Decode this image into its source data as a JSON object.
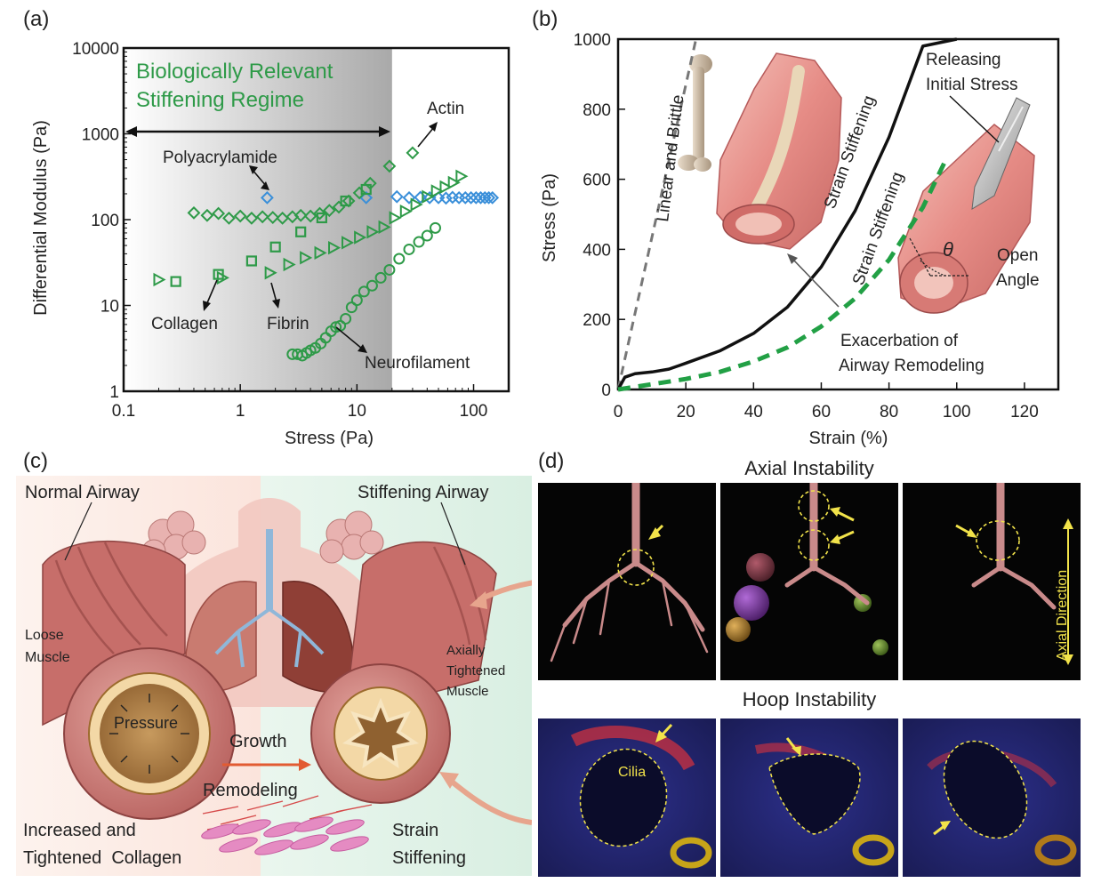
{
  "panels": {
    "a": "(a)",
    "b": "(b)",
    "c": "(c)",
    "d": "(d)"
  },
  "chart_data": [
    {
      "type": "scatter",
      "panel": "a",
      "xscale": "log",
      "yscale": "log",
      "xlim": [
        0.1,
        200
      ],
      "ylim": [
        1,
        10000
      ],
      "xlabel": "Stress (Pa)",
      "ylabel": "Differential Modulus (Pa)",
      "xticks": [
        "0.1",
        "1",
        "10",
        "100"
      ],
      "yticks": [
        "1",
        "10",
        "100",
        "1000",
        "10000"
      ],
      "shaded_region": {
        "x": [
          0.1,
          20
        ],
        "label_line1": "Biologically Relevant",
        "label_line2": "Stiffening Regime"
      },
      "series": [
        {
          "name": "Polyacrylamide",
          "marker": "diamond",
          "color": "#3a8fd9",
          "x": [
            1.7,
            12,
            22,
            28,
            35,
            42,
            50,
            58,
            66,
            75,
            85,
            95,
            105,
            115,
            125,
            135,
            145
          ],
          "y": [
            180,
            180,
            185,
            180,
            182,
            180,
            180,
            178,
            182,
            180,
            180,
            180,
            180,
            180,
            180,
            180,
            180
          ]
        },
        {
          "name": "Actin",
          "marker": "diamond",
          "color": "#2e9a48",
          "x": [
            0.4,
            0.52,
            0.65,
            0.8,
            1.0,
            1.25,
            1.55,
            1.9,
            2.3,
            2.8,
            3.3,
            4.0,
            4.8,
            5.8,
            7.0,
            8.5,
            10.5,
            13,
            19,
            30
          ],
          "y": [
            120,
            112,
            118,
            104,
            110,
            104,
            108,
            106,
            104,
            108,
            112,
            110,
            118,
            128,
            140,
            165,
            205,
            265,
            420,
            600
          ]
        },
        {
          "name": "Collagen",
          "marker": "square",
          "color": "#2e9a48",
          "x": [
            0.28,
            0.65,
            1.25,
            2.0,
            3.3,
            5.0,
            8.0,
            12
          ],
          "y": [
            19,
            23,
            33,
            48,
            72,
            105,
            165,
            225
          ]
        },
        {
          "name": "Fibrin",
          "marker": "triangle",
          "color": "#2e9a48",
          "x": [
            0.2,
            0.7,
            1.8,
            2.6,
            3.6,
            4.8,
            6.3,
            8.2,
            10.5,
            13.5,
            17,
            21,
            26,
            32,
            40,
            48,
            57,
            67,
            78
          ],
          "y": [
            20,
            21,
            24,
            30,
            36,
            41,
            47,
            54,
            62,
            72,
            82,
            105,
            125,
            150,
            185,
            215,
            240,
            270,
            320
          ]
        },
        {
          "name": "Neurofilament",
          "marker": "circle",
          "color": "#2e9a48",
          "x": [
            2.8,
            3.1,
            3.4,
            3.7,
            4.0,
            4.4,
            4.9,
            5.4,
            6.0,
            6.6,
            7.2,
            8.0,
            9.0,
            10.0,
            11.5,
            13.5,
            16,
            19,
            23,
            28,
            34,
            40,
            47
          ],
          "y": [
            2.7,
            2.7,
            2.6,
            2.8,
            3.0,
            3.2,
            3.6,
            4.2,
            5.0,
            5.6,
            5.8,
            7.0,
            9.5,
            11.5,
            14.5,
            17,
            21,
            26,
            35,
            45,
            55,
            65,
            80
          ]
        }
      ],
      "annotations": [
        "Polyacrylamide",
        "Actin",
        "Collagen",
        "Fibrin",
        "Neurofilament"
      ]
    },
    {
      "type": "line",
      "panel": "b",
      "xlim": [
        0,
        130
      ],
      "ylim": [
        0,
        1000
      ],
      "xlabel": "Strain (%)",
      "ylabel": "Stress (Pa)",
      "xticks": [
        "0",
        "20",
        "40",
        "60",
        "80",
        "100",
        "120"
      ],
      "yticks": [
        "0",
        "200",
        "400",
        "600",
        "800",
        "1000"
      ],
      "series": [
        {
          "label": "Linear and Brittle",
          "style": "dashed",
          "color": "#777777",
          "x": [
            0,
            23
          ],
          "y": [
            0,
            1000
          ]
        },
        {
          "label": "Strain Stiffening",
          "style": "solid",
          "color": "#111111",
          "x": [
            0,
            2,
            5,
            10,
            15,
            20,
            30,
            40,
            50,
            60,
            70,
            80,
            90,
            100
          ],
          "y": [
            0,
            35,
            45,
            50,
            58,
            75,
            110,
            160,
            235,
            350,
            510,
            720,
            980,
            1000
          ]
        },
        {
          "label": "Strain Stiffening",
          "style": "dashed",
          "color": "#22a045",
          "x": [
            0,
            10,
            20,
            30,
            40,
            50,
            60,
            70,
            80,
            90,
            97
          ],
          "y": [
            0,
            15,
            30,
            50,
            80,
            120,
            180,
            260,
            370,
            520,
            660
          ]
        }
      ],
      "annotations": [
        "Releasing",
        "Initial Stress",
        "Open",
        "Angle",
        "θ",
        "Exacerbation of",
        "Airway Remodeling"
      ]
    }
  ],
  "panel_c": {
    "normal_airway": "Normal Airway",
    "stiffening_airway": "Stiffening Airway",
    "loose_muscle_1": "Loose",
    "loose_muscle_2": "Muscle",
    "pressure": "Pressure",
    "axial_1": "Axially",
    "axial_2": "Tightened",
    "axial_3": "Muscle",
    "growth": "Growth",
    "remodeling": "Remodeling",
    "collagen_1": "Increased and",
    "collagen_2": "Tightened  Collagen",
    "strain_1": "Strain",
    "strain_2": "Stiffening"
  },
  "panel_d": {
    "axial_title": "Axial Instability",
    "hoop_title": "Hoop Instability",
    "axial_direction": "Axial Direction",
    "cilia": "Cilia"
  }
}
